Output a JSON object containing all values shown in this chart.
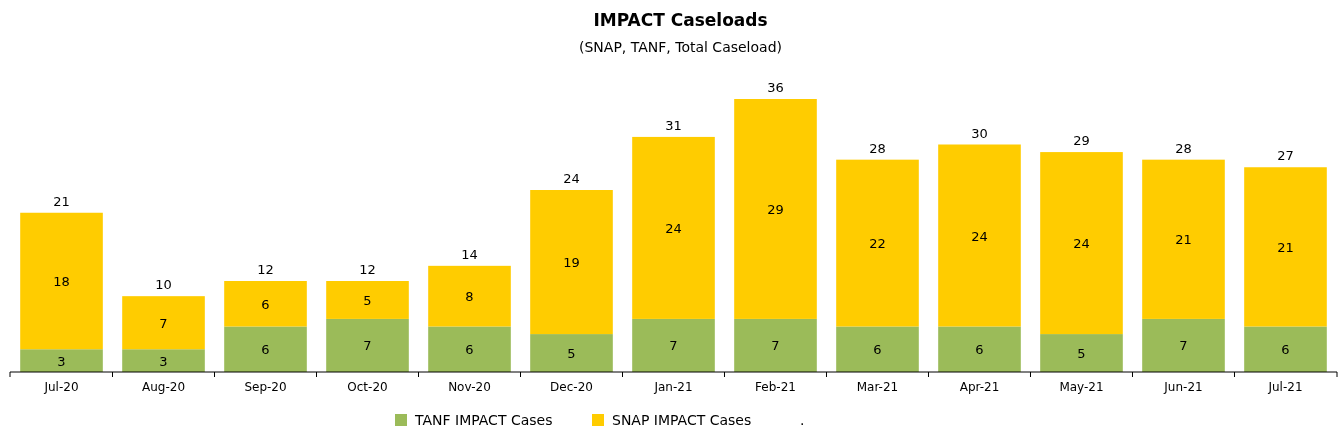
{
  "chart_data": {
    "type": "bar",
    "title": "IMPACT Caseloads",
    "subtitle": "(SNAP, TANF, Total Caseload)",
    "stacked": true,
    "data_labels": true,
    "legend": "bottom",
    "categories": [
      "Jul-20",
      "Aug-20",
      "Sep-20",
      "Oct-20",
      "Nov-20",
      "Dec-20",
      "Jan-21",
      "Feb-21",
      "Mar-21",
      "Apr-21",
      "May-21",
      "Jun-21",
      "Jul-21"
    ],
    "series": [
      {
        "name": "TANF IMPACT Cases",
        "color": "#9bbb59",
        "values": [
          3,
          3,
          6,
          7,
          6,
          5,
          7,
          7,
          6,
          6,
          5,
          7,
          6
        ]
      },
      {
        "name": "SNAP IMPACT Cases",
        "color": "#ffcc00",
        "values": [
          18,
          7,
          6,
          5,
          8,
          19,
          24,
          29,
          22,
          24,
          24,
          21,
          21
        ]
      }
    ],
    "totals": [
      "21",
      "10",
      "12",
      "12",
      "14",
      "24",
      "31",
      "36",
      "28",
      "30",
      "29",
      "28",
      "27"
    ],
    "annotations": [
      "."
    ]
  }
}
